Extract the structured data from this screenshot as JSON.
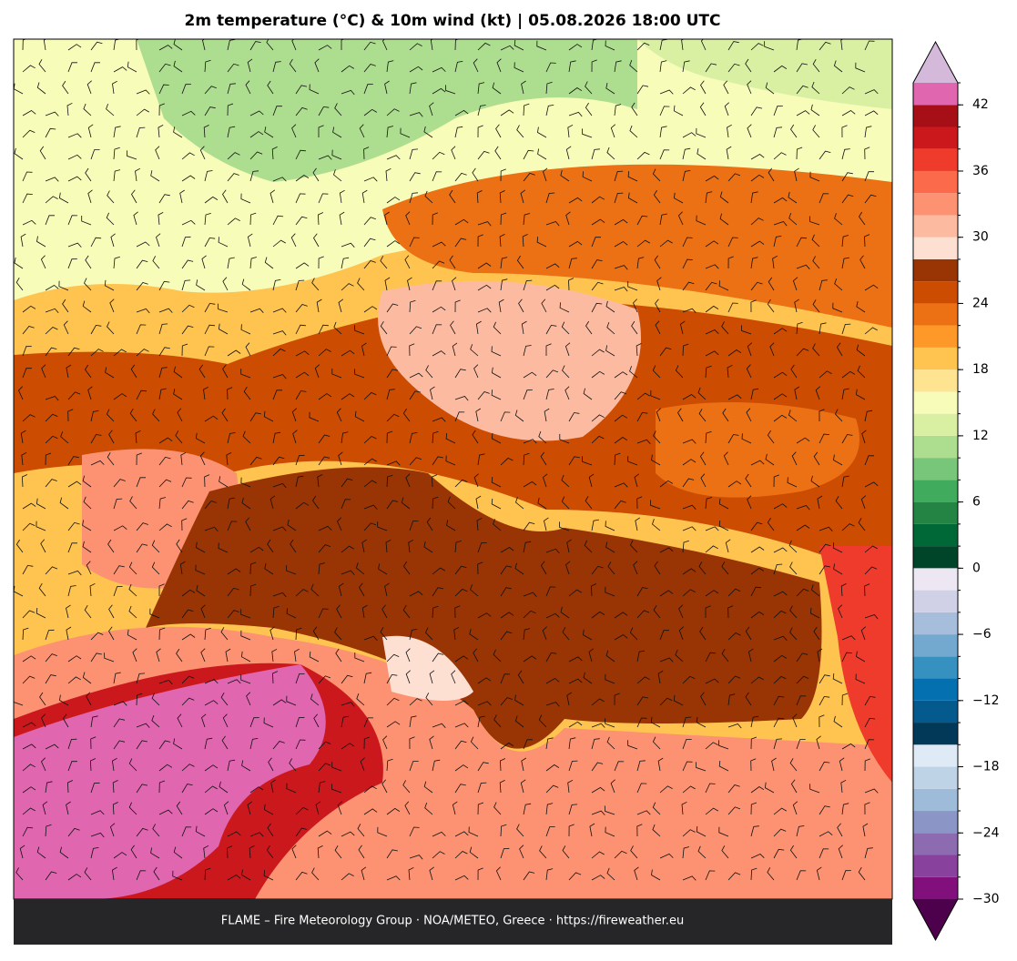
{
  "title": "2m temperature (°C) & 10m wind (kt)  |  05.08.2026 18:00 UTC",
  "footer": "FLAME – Fire Meteorology Group · NOA/METEO, Greece · https://fireweather.eu",
  "colorbar": {
    "clim": [
      -30,
      44
    ],
    "levels": [
      -30,
      -28,
      -26,
      -24,
      -22,
      -20,
      -18,
      -16,
      -14,
      -12,
      -10,
      -8,
      -6,
      -4,
      -2,
      0,
      2,
      4,
      6,
      8,
      10,
      12,
      14,
      16,
      18,
      20,
      22,
      24,
      26,
      28,
      30,
      32,
      34,
      36,
      38,
      40,
      42,
      44
    ],
    "colors": [
      "#810f7c",
      "#88419d",
      "#8c6bb1",
      "#8c96c6",
      "#9ebcda",
      "#bfd3e6",
      "#deebf7",
      "#023858",
      "#045a8d",
      "#0570b0",
      "#3690c0",
      "#74a9cf",
      "#a6bddb",
      "#d0d1e6",
      "#ece7f2",
      "#004529",
      "#006837",
      "#238443",
      "#41ab5d",
      "#78c679",
      "#addd8e",
      "#d9f0a3",
      "#f7fcb9",
      "#fee391",
      "#fec44f",
      "#fe9929",
      "#ec7014",
      "#cc4c02",
      "#993404",
      "#fee0d2",
      "#fcbba1",
      "#fc9272",
      "#fb6a4a",
      "#ef3b2c",
      "#cb181d",
      "#a50f15",
      "#e066b0"
    ],
    "under_color": "#4d004b",
    "over_color": "#d4b9da",
    "ticks": [
      {
        "value": -30,
        "label": "−30"
      },
      {
        "value": -24,
        "label": "−24"
      },
      {
        "value": -18,
        "label": "−18"
      },
      {
        "value": -12,
        "label": "−12"
      },
      {
        "value": -6,
        "label": "−6"
      },
      0,
      6,
      12,
      18,
      24,
      30,
      36,
      42
    ]
  }
}
